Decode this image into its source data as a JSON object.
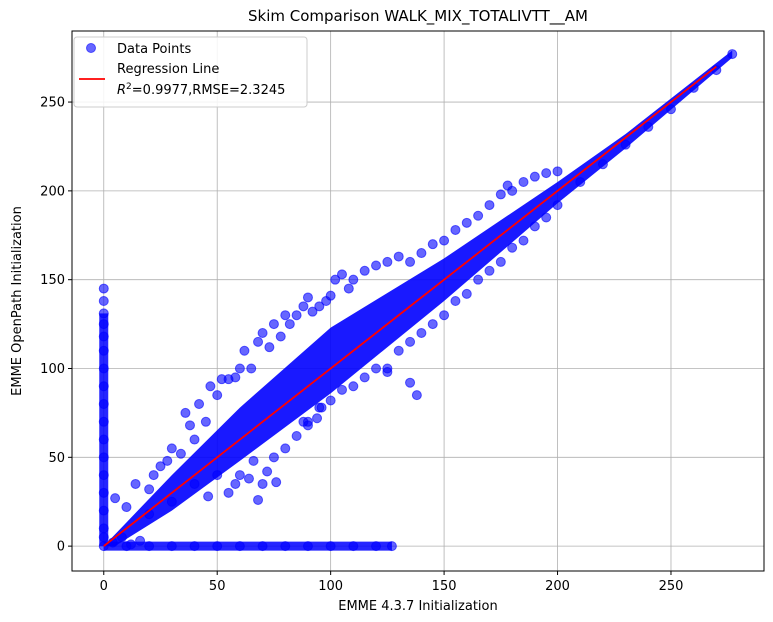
{
  "chart_data": {
    "type": "scatter",
    "title": "Skim Comparison WALK_MIX_TOTALIVTT__AM",
    "xlabel": "EMME 4.3.7 Initialization",
    "ylabel": "EMME OpenPath Initialization",
    "xlim": [
      -14,
      291
    ],
    "ylim": [
      -14,
      290
    ],
    "xticks": [
      0,
      50,
      100,
      150,
      200,
      250
    ],
    "yticks": [
      0,
      50,
      100,
      150,
      200,
      250
    ],
    "grid": true,
    "legend_position": "top-left",
    "series": [
      {
        "name": "Data Points",
        "kind": "scatter",
        "color": "#0000ff",
        "alpha": 0.6,
        "points": [
          [
            0,
            145
          ],
          [
            0,
            138
          ],
          [
            0,
            131
          ],
          [
            0,
            125
          ],
          [
            0,
            118
          ],
          [
            0,
            110
          ],
          [
            0,
            100
          ],
          [
            0,
            90
          ],
          [
            0,
            80
          ],
          [
            0,
            70
          ],
          [
            0,
            60
          ],
          [
            0,
            50
          ],
          [
            0,
            40
          ],
          [
            0,
            30
          ],
          [
            0,
            20
          ],
          [
            0,
            10
          ],
          [
            0,
            5
          ],
          [
            0,
            0
          ],
          [
            10,
            0
          ],
          [
            20,
            0
          ],
          [
            30,
            0
          ],
          [
            40,
            0
          ],
          [
            50,
            0
          ],
          [
            60,
            0
          ],
          [
            70,
            0
          ],
          [
            80,
            0
          ],
          [
            90,
            0
          ],
          [
            100,
            0
          ],
          [
            110,
            0
          ],
          [
            120,
            0
          ],
          [
            127,
            0
          ],
          [
            5,
            27
          ],
          [
            10,
            22
          ],
          [
            14,
            35
          ],
          [
            20,
            32
          ],
          [
            22,
            40
          ],
          [
            25,
            45
          ],
          [
            28,
            48
          ],
          [
            30,
            55
          ],
          [
            34,
            52
          ],
          [
            36,
            75
          ],
          [
            38,
            68
          ],
          [
            40,
            60
          ],
          [
            42,
            80
          ],
          [
            45,
            70
          ],
          [
            47,
            90
          ],
          [
            50,
            85
          ],
          [
            52,
            94
          ],
          [
            55,
            94
          ],
          [
            58,
            95
          ],
          [
            60,
            100
          ],
          [
            62,
            110
          ],
          [
            65,
            100
          ],
          [
            68,
            115
          ],
          [
            70,
            120
          ],
          [
            73,
            112
          ],
          [
            75,
            125
          ],
          [
            78,
            118
          ],
          [
            80,
            130
          ],
          [
            82,
            125
          ],
          [
            85,
            130
          ],
          [
            88,
            135
          ],
          [
            90,
            140
          ],
          [
            92,
            132
          ],
          [
            95,
            135
          ],
          [
            98,
            138
          ],
          [
            100,
            141
          ],
          [
            102,
            150
          ],
          [
            105,
            153
          ],
          [
            108,
            145
          ],
          [
            110,
            150
          ],
          [
            115,
            155
          ],
          [
            120,
            158
          ],
          [
            125,
            160
          ],
          [
            130,
            163
          ],
          [
            135,
            160
          ],
          [
            140,
            165
          ],
          [
            145,
            170
          ],
          [
            150,
            172
          ],
          [
            155,
            178
          ],
          [
            160,
            182
          ],
          [
            165,
            186
          ],
          [
            170,
            192
          ],
          [
            175,
            198
          ],
          [
            178,
            203
          ],
          [
            180,
            200
          ],
          [
            185,
            205
          ],
          [
            190,
            208
          ],
          [
            195,
            210
          ],
          [
            200,
            211
          ],
          [
            40,
            35
          ],
          [
            50,
            40
          ],
          [
            58,
            35
          ],
          [
            60,
            40
          ],
          [
            64,
            38
          ],
          [
            66,
            48
          ],
          [
            70,
            35
          ],
          [
            72,
            42
          ],
          [
            75,
            50
          ],
          [
            80,
            55
          ],
          [
            85,
            62
          ],
          [
            90,
            70
          ],
          [
            95,
            78
          ],
          [
            100,
            82
          ],
          [
            105,
            88
          ],
          [
            110,
            90
          ],
          [
            115,
            95
          ],
          [
            120,
            100
          ],
          [
            125,
            98
          ],
          [
            130,
            110
          ],
          [
            135,
            115
          ],
          [
            140,
            120
          ],
          [
            145,
            125
          ],
          [
            150,
            130
          ],
          [
            155,
            138
          ],
          [
            160,
            142
          ],
          [
            165,
            150
          ],
          [
            170,
            155
          ],
          [
            175,
            160
          ],
          [
            180,
            168
          ],
          [
            185,
            172
          ],
          [
            190,
            180
          ],
          [
            195,
            185
          ],
          [
            200,
            192
          ],
          [
            210,
            205
          ],
          [
            220,
            215
          ],
          [
            230,
            226
          ],
          [
            240,
            236
          ],
          [
            250,
            246
          ],
          [
            260,
            258
          ],
          [
            270,
            268
          ],
          [
            277,
            277
          ],
          [
            138,
            85
          ],
          [
            135,
            92
          ],
          [
            125,
            100
          ],
          [
            96,
            78
          ],
          [
            94,
            72
          ],
          [
            90,
            68
          ],
          [
            88,
            70
          ],
          [
            20,
            18
          ],
          [
            30,
            25
          ],
          [
            46,
            28
          ],
          [
            55,
            30
          ],
          [
            68,
            26
          ],
          [
            76,
            36
          ],
          [
            16,
            3
          ],
          [
            12,
            1
          ],
          [
            8,
            5
          ],
          [
            4,
            2
          ]
        ]
      },
      {
        "name": "Regression Line",
        "kind": "line",
        "color": "#ff0000",
        "points": [
          [
            0,
            0
          ],
          [
            270,
            270
          ]
        ]
      }
    ],
    "legend": [
      {
        "label": "Data Points",
        "marker": "circle",
        "color": "#0000ff"
      },
      {
        "label": "Regression Line",
        "sublabel_prefix": "R",
        "sublabel_sup": "2",
        "sublabel_rest": "=0.9977,RMSE=2.3245",
        "marker": "line",
        "color": "#ff0000"
      }
    ],
    "annotations": {
      "r_squared": 0.9977,
      "rmse": 2.3245
    }
  }
}
